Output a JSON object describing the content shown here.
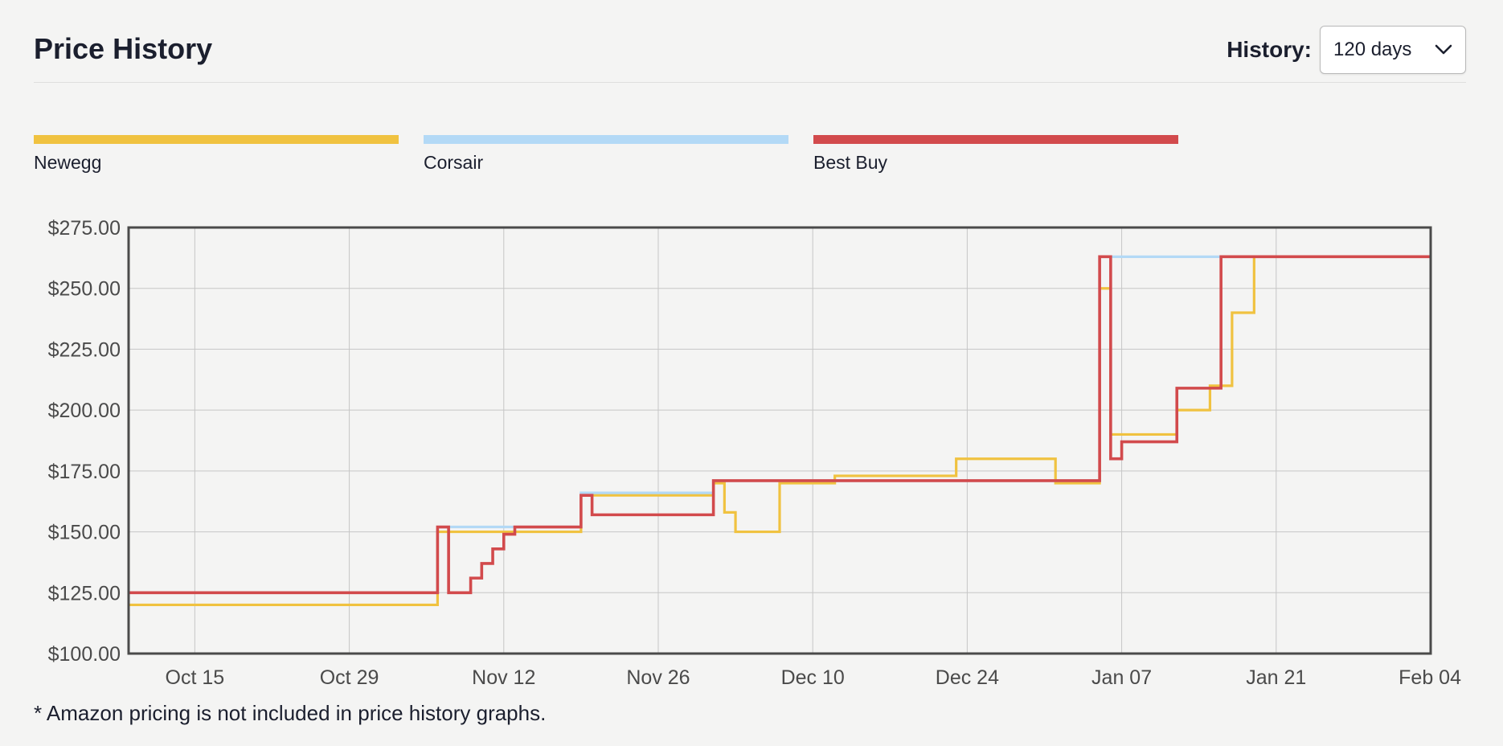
{
  "header": {
    "title": "Price History",
    "history_label": "History:",
    "history_selected": "120 days"
  },
  "footnote": "* Amazon pricing is not included in price history graphs.",
  "colors": {
    "newegg": "#f0c240",
    "corsair": "#b3d9f6",
    "bestbuy": "#d24a4c",
    "grid": "#c6c6c6",
    "frame": "#4a4a4a"
  },
  "chart_data": {
    "type": "line",
    "step": "post",
    "x_axis": {
      "type": "date",
      "range": [
        "2024-10-09",
        "2025-02-04"
      ],
      "ticks": [
        "2024-10-15",
        "2024-10-29",
        "2024-11-12",
        "2024-11-26",
        "2024-12-10",
        "2024-12-24",
        "2025-01-07",
        "2025-01-21",
        "2025-02-04"
      ],
      "tick_labels": [
        "Oct 15",
        "Oct 29",
        "Nov 12",
        "Nov 26",
        "Dec 10",
        "Dec 24",
        "Jan 07",
        "Jan 21",
        "Feb 04"
      ]
    },
    "y_axis": {
      "range": [
        100,
        275
      ],
      "ticks": [
        100,
        125,
        150,
        175,
        200,
        225,
        250,
        275
      ],
      "tick_labels": [
        "$100.00",
        "$125.00",
        "$150.00",
        "$175.00",
        "$200.00",
        "$225.00",
        "$250.00",
        "$275.00"
      ]
    },
    "grid": true,
    "legend_position": "top",
    "series": [
      {
        "name": "Newegg",
        "color": "#f0c240",
        "points": [
          [
            "2024-10-09",
            120
          ],
          [
            "2024-11-06",
            150
          ],
          [
            "2024-11-19",
            165
          ],
          [
            "2024-12-01",
            170
          ],
          [
            "2024-12-02",
            158
          ],
          [
            "2024-12-03",
            150
          ],
          [
            "2024-12-07",
            170
          ],
          [
            "2024-12-12",
            173
          ],
          [
            "2024-12-23",
            180
          ],
          [
            "2025-01-01",
            170
          ],
          [
            "2025-01-05",
            250
          ],
          [
            "2025-01-06",
            190
          ],
          [
            "2025-01-12",
            200
          ],
          [
            "2025-01-15",
            210
          ],
          [
            "2025-01-17",
            240
          ],
          [
            "2025-01-19",
            263
          ],
          [
            "2025-02-04",
            263
          ]
        ]
      },
      {
        "name": "Corsair",
        "color": "#b3d9f6",
        "points": [
          [
            "2024-10-09",
            125
          ],
          [
            "2024-11-06",
            152
          ],
          [
            "2024-11-19",
            166
          ],
          [
            "2024-12-01",
            171
          ],
          [
            "2025-01-05",
            263
          ],
          [
            "2025-02-04",
            263
          ]
        ]
      },
      {
        "name": "Best Buy",
        "color": "#d24a4c",
        "points": [
          [
            "2024-10-09",
            125
          ],
          [
            "2024-11-06",
            152
          ],
          [
            "2024-11-07",
            125
          ],
          [
            "2024-11-09",
            131
          ],
          [
            "2024-11-10",
            137
          ],
          [
            "2024-11-11",
            143
          ],
          [
            "2024-11-12",
            149
          ],
          [
            "2024-11-13",
            152
          ],
          [
            "2024-11-19",
            165
          ],
          [
            "2024-11-20",
            157
          ],
          [
            "2024-12-01",
            171
          ],
          [
            "2025-01-05",
            263
          ],
          [
            "2025-01-06",
            180
          ],
          [
            "2025-01-07",
            187
          ],
          [
            "2025-01-12",
            209
          ],
          [
            "2025-01-16",
            263
          ],
          [
            "2025-02-04",
            263
          ]
        ]
      }
    ]
  }
}
